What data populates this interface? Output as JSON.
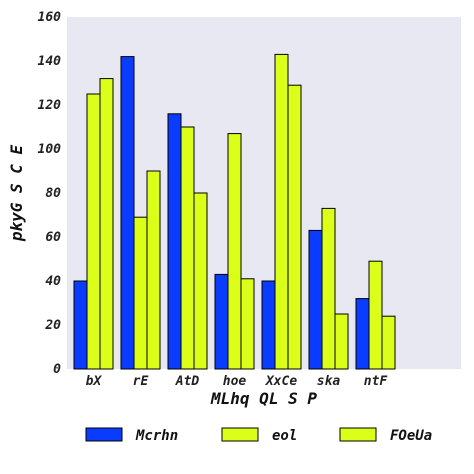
{
  "chart_data": {
    "type": "bar",
    "categories": [
      "bX",
      "rE",
      "AtD",
      "hoe",
      "XxCe",
      "ska",
      "ntF"
    ],
    "series": [
      {
        "name": "Mcrhn",
        "color": "#0a3cff",
        "values": [
          40,
          142,
          116,
          43,
          40,
          63,
          32
        ]
      },
      {
        "name": "eol",
        "color": "#dcff19",
        "values": [
          125,
          69,
          110,
          107,
          143,
          73,
          49
        ]
      },
      {
        "name": "FOeUa",
        "color": "#dcff19",
        "values": [
          132,
          90,
          80,
          41,
          129,
          25,
          24
        ]
      }
    ],
    "xlabel": "MLhq QL S P",
    "ylabel": "pkyG S C E",
    "ylim": [
      0,
      160
    ],
    "yticks": [
      0,
      20,
      40,
      60,
      80,
      100,
      120,
      140,
      160
    ],
    "grid": false,
    "background": "#e8e8f2",
    "legend_placement": "bottom"
  }
}
